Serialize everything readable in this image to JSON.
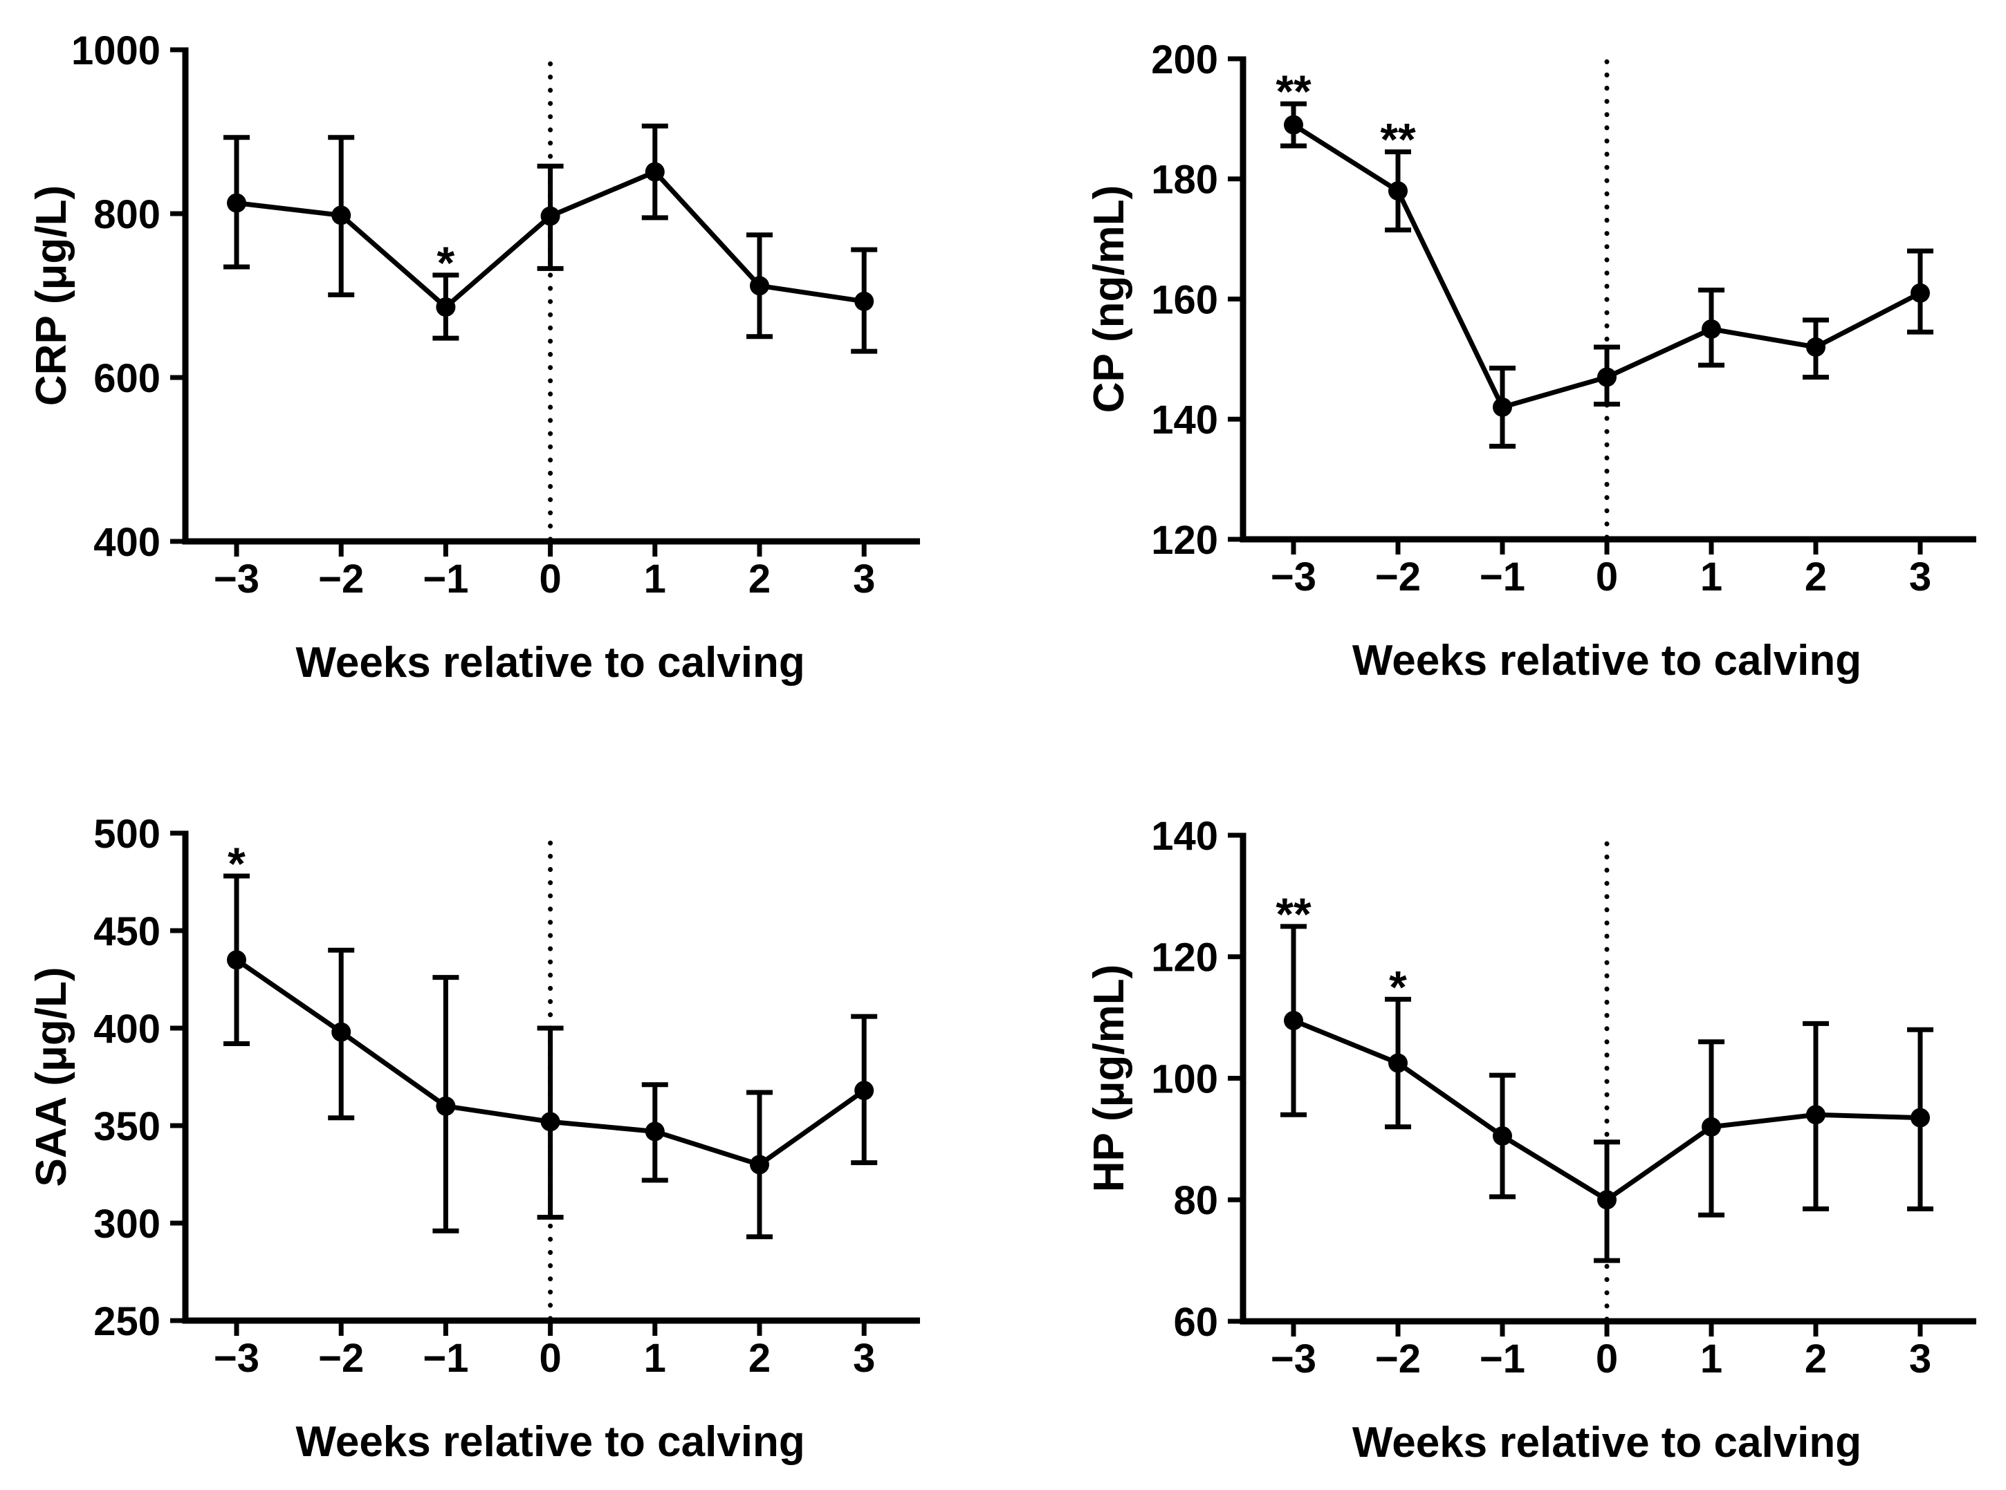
{
  "figure": {
    "background": "#ffffff",
    "ink_color": "#000000",
    "panel_count": 4,
    "panels_order": [
      "crp",
      "cp",
      "saa",
      "hp"
    ]
  },
  "chart_data": [
    {
      "id": "crp",
      "type": "line",
      "panel": "top-left",
      "title": "",
      "xlabel": "Weeks relative to calving",
      "ylabel": "CRP (μg/L)",
      "x_weeks": [
        -3,
        -2,
        -1,
        0,
        1,
        2,
        3
      ],
      "x_tick_labels": [
        "−3",
        "−2",
        "−1",
        "0",
        "1",
        "2",
        "3"
      ],
      "ylim": [
        400,
        1000
      ],
      "yticks": [
        400,
        600,
        800,
        1000
      ],
      "ytick_labels": [
        "400",
        "600",
        "800",
        "1000"
      ],
      "reference_line_x": 0,
      "reference_line_style": "dotted",
      "series": [
        {
          "name": "mean",
          "values": [
            813,
            798,
            686,
            797,
            851,
            712,
            693
          ],
          "error_upper": [
            893,
            893,
            725,
            858,
            907,
            774,
            756
          ],
          "error_lower": [
            735,
            701,
            648,
            733,
            795,
            650,
            632
          ]
        }
      ],
      "annotations": [
        {
          "x": -1,
          "text": "*"
        }
      ]
    },
    {
      "id": "cp",
      "type": "line",
      "panel": "top-right",
      "title": "",
      "xlabel": "Weeks relative to calving",
      "ylabel": "CP (ng/mL)",
      "x_weeks": [
        -3,
        -2,
        -1,
        0,
        1,
        2,
        3
      ],
      "x_tick_labels": [
        "−3",
        "−2",
        "−1",
        "0",
        "1",
        "2",
        "3"
      ],
      "ylim": [
        120,
        200
      ],
      "yticks": [
        120,
        140,
        160,
        180,
        200
      ],
      "ytick_labels": [
        "120",
        "140",
        "160",
        "180",
        "200"
      ],
      "reference_line_x": 0,
      "reference_line_style": "dotted",
      "series": [
        {
          "name": "mean",
          "values": [
            189,
            178,
            142,
            147,
            155,
            152,
            161
          ],
          "error_upper": [
            192.5,
            184.5,
            148.5,
            152,
            161.5,
            156.5,
            168
          ],
          "error_lower": [
            185.5,
            171.5,
            135.5,
            142.5,
            149,
            147,
            154.5
          ]
        }
      ],
      "annotations": [
        {
          "x": -3,
          "text": "**"
        },
        {
          "x": -2,
          "text": "**"
        }
      ]
    },
    {
      "id": "saa",
      "type": "line",
      "panel": "bottom-left",
      "title": "",
      "xlabel": "Weeks relative to calving",
      "ylabel": "SAA (μg/L)",
      "x_weeks": [
        -3,
        -2,
        -1,
        0,
        1,
        2,
        3
      ],
      "x_tick_labels": [
        "−3",
        "−2",
        "−1",
        "0",
        "1",
        "2",
        "3"
      ],
      "ylim": [
        250,
        500
      ],
      "yticks": [
        250,
        300,
        350,
        400,
        450,
        500
      ],
      "ytick_labels": [
        "250",
        "300",
        "350",
        "400",
        "450",
        "500"
      ],
      "reference_line_x": 0,
      "reference_line_style": "dotted",
      "series": [
        {
          "name": "mean",
          "values": [
            435,
            398,
            360,
            352,
            347,
            330,
            368
          ],
          "error_upper": [
            478,
            440,
            426,
            400,
            371,
            367,
            406
          ],
          "error_lower": [
            392,
            354,
            296,
            303,
            322,
            293,
            331
          ]
        }
      ],
      "annotations": [
        {
          "x": -3,
          "text": "*"
        }
      ]
    },
    {
      "id": "hp",
      "type": "line",
      "panel": "bottom-right",
      "title": "",
      "xlabel": "Weeks relative to calving",
      "ylabel": "HP (μg/mL)",
      "x_weeks": [
        -3,
        -2,
        -1,
        0,
        1,
        2,
        3
      ],
      "x_tick_labels": [
        "−3",
        "−2",
        "−1",
        "0",
        "1",
        "2",
        "3"
      ],
      "ylim": [
        60,
        140
      ],
      "yticks": [
        60,
        80,
        100,
        120,
        140
      ],
      "ytick_labels": [
        "60",
        "80",
        "100",
        "120",
        "140"
      ],
      "reference_line_x": 0,
      "reference_line_style": "dotted",
      "series": [
        {
          "name": "mean",
          "values": [
            109.5,
            102.5,
            90.5,
            80,
            92,
            94,
            93.5
          ],
          "error_upper": [
            125,
            113,
            100.5,
            89.5,
            106,
            109,
            108
          ],
          "error_lower": [
            94,
            92,
            80.5,
            70,
            77.5,
            78.5,
            78.5
          ]
        }
      ],
      "annotations": [
        {
          "x": -3,
          "text": "**"
        },
        {
          "x": -2,
          "text": "*"
        }
      ]
    }
  ]
}
